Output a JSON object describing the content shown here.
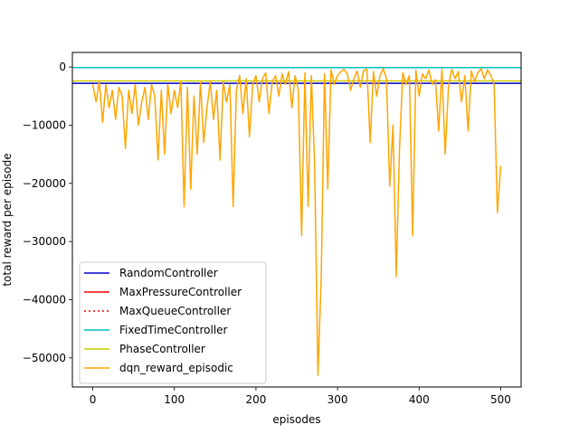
{
  "chart_data": {
    "type": "line",
    "title": "",
    "xlabel": "episodes",
    "ylabel": "total reward per episode",
    "xlim": [
      -25,
      525
    ],
    "ylim": [
      -55000,
      2500
    ],
    "xticks": [
      0,
      100,
      200,
      300,
      400,
      500
    ],
    "yticks": [
      0,
      -10000,
      -20000,
      -30000,
      -40000,
      -50000
    ],
    "grid": false,
    "legend_position": "lower-left",
    "series": [
      {
        "name": "RandomController",
        "type": "hline",
        "value": -2800,
        "color": "#0000cc",
        "style": "solid"
      },
      {
        "name": "MaxPressureController",
        "type": "hline",
        "value": -100,
        "color": "#ff0000",
        "style": "solid"
      },
      {
        "name": "MaxQueueController",
        "type": "hline",
        "value": -100,
        "color": "#ff0000",
        "style": "dotted"
      },
      {
        "name": "FixedTimeController",
        "type": "hline",
        "value": -100,
        "color": "#00bfbf",
        "style": "solid"
      },
      {
        "name": "PhaseController",
        "type": "hline",
        "value": -2400,
        "color": "#cccc00",
        "style": "solid"
      },
      {
        "name": "dqn_reward_episodic",
        "type": "line",
        "color": "#ffa500",
        "style": "solid",
        "x": [
          0,
          4,
          8,
          12,
          16,
          20,
          24,
          28,
          32,
          36,
          40,
          44,
          48,
          52,
          56,
          60,
          64,
          68,
          72,
          76,
          80,
          84,
          88,
          92,
          96,
          100,
          104,
          108,
          112,
          116,
          120,
          124,
          128,
          132,
          136,
          140,
          144,
          148,
          152,
          156,
          160,
          164,
          168,
          172,
          176,
          180,
          184,
          188,
          192,
          196,
          200,
          204,
          208,
          212,
          216,
          220,
          224,
          228,
          232,
          236,
          240,
          244,
          248,
          252,
          256,
          260,
          264,
          268,
          272,
          276,
          280,
          284,
          288,
          292,
          296,
          300,
          304,
          308,
          312,
          316,
          320,
          324,
          328,
          332,
          336,
          340,
          344,
          348,
          352,
          356,
          360,
          364,
          368,
          372,
          376,
          380,
          384,
          388,
          392,
          396,
          400,
          404,
          408,
          412,
          416,
          420,
          424,
          428,
          432,
          436,
          440,
          444,
          448,
          452,
          456,
          460,
          464,
          468,
          472,
          476,
          480,
          484,
          488,
          492,
          496,
          500
        ],
        "y": [
          -3000,
          -6000,
          -2500,
          -9500,
          -3000,
          -7000,
          -4000,
          -9000,
          -3500,
          -5000,
          -14000,
          -4000,
          -8000,
          -3000,
          -10000,
          -6000,
          -3500,
          -9000,
          -3000,
          -5000,
          -16000,
          -4000,
          -15000,
          -3000,
          -8000,
          -4000,
          -7000,
          -2500,
          -24000,
          -3500,
          -21000,
          -5000,
          -15000,
          -2500,
          -13000,
          -7000,
          -2500,
          -9000,
          -4000,
          -16000,
          -2500,
          -6000,
          -3000,
          -24000,
          -4000,
          -1500,
          -8000,
          -2000,
          -12000,
          -3000,
          -1500,
          -6000,
          -2000,
          -1000,
          -8000,
          -2500,
          -1500,
          -5000,
          -1200,
          -3000,
          -800,
          -7000,
          -1500,
          -4000,
          -29000,
          -1000,
          -24000,
          -1500,
          -17000,
          -53000,
          -36000,
          -1200,
          -21000,
          -500,
          -3000,
          -1500,
          -800,
          -400,
          -1200,
          -4000,
          -2000,
          -700,
          -3500,
          -600,
          -400,
          -13000,
          -800,
          -5000,
          -1500,
          -300,
          -2000,
          -20500,
          -10000,
          -36000,
          -14000,
          -1000,
          -3000,
          -1500,
          -29000,
          -600,
          -5000,
          -1200,
          -2000,
          -500,
          -3000,
          -2200,
          -11000,
          -400,
          -15000,
          -3500,
          -400,
          -2000,
          -800,
          -6000,
          -1500,
          -11000,
          -700,
          -2500,
          -1000,
          -300,
          -2000,
          -500,
          -1500,
          -3000,
          -25000,
          -17000
        ]
      }
    ]
  }
}
